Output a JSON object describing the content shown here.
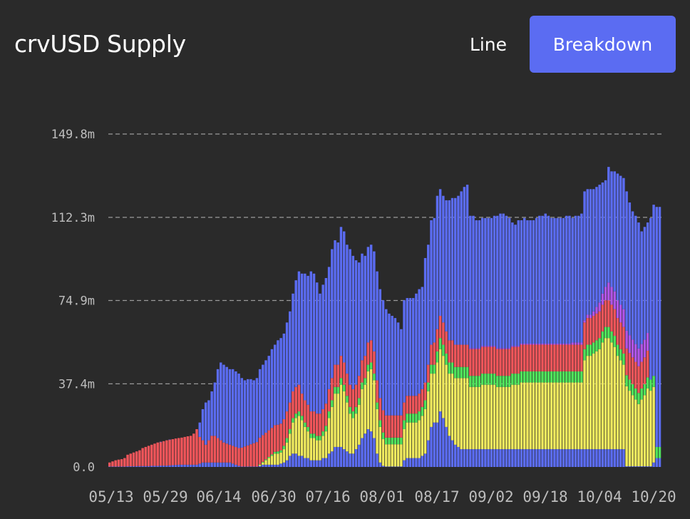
{
  "header": {
    "title": "crvUSD Supply",
    "view_options": [
      "Line",
      "Breakdown"
    ],
    "selected_view": "Breakdown"
  },
  "colors": {
    "background": "#2a2a2a",
    "accent": "#5b6cf2",
    "series": [
      "#5b6cf2",
      "#f0ea5e",
      "#4fe35b",
      "#f0555a",
      "#b055e8"
    ]
  },
  "chart_data": {
    "type": "bar",
    "stacked": true,
    "title": "crvUSD Supply",
    "xlabel": "",
    "ylabel": "",
    "ylim": [
      0,
      149.8
    ],
    "yticks": [
      0,
      37.4,
      74.9,
      112.3,
      149.8
    ],
    "ytick_labels": [
      "0.0",
      "37.4m",
      "74.9m",
      "112.3m",
      "149.8m"
    ],
    "xtick_labels": [
      "05/13",
      "05/29",
      "06/14",
      "06/30",
      "07/16",
      "08/01",
      "08/17",
      "09/02",
      "09/18",
      "10/04",
      "10/20"
    ],
    "grid": "horizontal dashed",
    "legend": "none",
    "start_date": "2023-05-13",
    "totals": [
      2.0,
      2.5,
      3.0,
      3.3,
      3.5,
      4.0,
      5.5,
      6.0,
      6.5,
      7.0,
      7.5,
      8.5,
      9.0,
      9.5,
      10.0,
      10.5,
      11.0,
      11.3,
      11.6,
      12.0,
      12.3,
      12.5,
      12.8,
      13.0,
      13.2,
      13.5,
      13.8,
      14.0,
      15.0,
      17.0,
      20.0,
      26.0,
      29.0,
      30.0,
      34.0,
      38.0,
      44.0,
      47.0,
      46.0,
      45.0,
      44.0,
      44.0,
      43.0,
      42.0,
      40.0,
      39.0,
      39.5,
      39.5,
      39.0,
      40.0,
      44.0,
      46.0,
      48.0,
      50.0,
      53.0,
      55.0,
      57.0,
      58.0,
      60.0,
      65.0,
      70.0,
      78.0,
      84.0,
      88.0,
      87.0,
      87.0,
      86.0,
      88.0,
      87.0,
      83.0,
      78.0,
      82.0,
      85.0,
      90.0,
      98.0,
      102.0,
      101.0,
      108.0,
      106.0,
      100.0,
      98.0,
      95.0,
      93.0,
      92.0,
      96.0,
      95.0,
      99.0,
      100.0,
      97.0,
      88.0,
      80.0,
      75.0,
      71.0,
      69.0,
      68.0,
      67.0,
      65.0,
      62.0,
      75.0,
      76.0,
      76.0,
      76.0,
      78.0,
      80.0,
      81.0,
      94.0,
      100.0,
      111.0,
      112.0,
      122.0,
      125.0,
      122.0,
      120.0,
      120.0,
      121.0,
      121.0,
      122.0,
      124.0,
      126.0,
      127.0,
      113.0,
      113.0,
      111.0,
      111.0,
      112.0,
      112.0,
      112.0,
      112.0,
      113.0,
      113.0,
      114.0,
      114.0,
      113.0,
      112.0,
      110.0,
      109.0,
      111.0,
      111.0,
      112.0,
      111.0,
      111.0,
      111.0,
      112.0,
      113.0,
      113.0,
      114.0,
      113.0,
      112.0,
      112.0,
      112.0,
      112.0,
      112.0,
      113.0,
      113.0,
      112.0,
      113.0,
      113.0,
      114.0,
      124.0,
      125.0,
      125.0,
      125.0,
      126.0,
      127.0,
      128.0,
      129.0,
      135.0,
      133.0,
      133.0,
      132.0,
      131.0,
      130.0,
      124.0,
      119.0,
      115.0,
      113.0,
      110.0,
      106.0,
      108.0,
      110.0,
      112.0,
      118.0,
      117.0,
      117.0
    ],
    "series": [
      {
        "values": [
          1.0,
          1.0,
          1.0,
          1.0,
          1.0,
          1.0,
          1.0,
          1.0,
          1.0,
          1.0,
          1.0,
          1.0,
          1.0,
          1.0,
          1.0,
          1.0,
          1.0,
          1.0,
          1.0,
          1.0,
          1.0,
          1.0,
          1.0,
          1.0,
          1.0,
          1.0,
          1.0,
          1.0,
          1.0,
          1.0,
          1.0,
          1.0,
          1.0,
          1.0,
          1.0,
          1.0,
          1.0,
          1.0,
          1.0,
          1.0,
          1.0,
          1.0,
          1.0,
          1.0,
          1.0,
          1.0,
          1.0,
          1.0,
          1.0,
          1.0,
          1.0,
          1.0,
          1.0,
          1.0,
          1.0,
          1.0,
          1.0,
          1.0,
          1.0,
          1.0,
          1.0,
          1.0,
          1.0,
          1.0,
          1.0,
          1.0,
          1.0,
          1.0,
          1.0,
          1.0,
          1.0,
          1.0,
          1.0,
          1.0,
          1.0,
          1.0,
          1.0,
          1.0,
          1.0,
          1.0,
          1.0,
          1.0,
          1.0,
          1.0,
          1.0,
          1.0,
          1.0,
          1.0,
          1.0,
          1.0,
          1.0,
          1.0,
          1.0,
          1.0,
          1.0,
          1.0,
          1.0,
          1.0,
          1.0,
          1.0,
          1.0,
          1.0,
          1.0,
          1.0,
          1.0,
          1.0,
          1.0,
          1.0,
          1.0,
          1.0,
          1.0,
          1.0,
          1.0,
          1.0,
          1.0,
          1.0,
          1.0,
          1.0,
          1.0,
          1.0,
          1.0,
          1.0,
          1.0,
          1.0,
          1.0,
          1.0,
          1.0,
          1.0,
          1.0,
          1.0,
          1.0,
          1.0,
          1.0,
          1.0,
          1.0,
          1.0,
          1.0,
          1.0,
          1.0,
          1.0,
          1.0,
          1.0,
          1.0,
          1.0,
          1.0,
          1.0,
          1.0,
          1.0,
          1.0,
          1.0,
          1.0,
          1.0,
          1.0,
          1.0,
          1.0,
          1.0,
          1.0,
          1.0,
          1.0,
          1.0,
          1.0,
          1.0,
          1.0,
          1.0,
          1.0,
          1.0,
          1.0,
          1.0,
          1.0,
          1.0,
          1.0,
          1.0,
          1.0,
          1.0,
          1.0,
          1.0,
          1.0,
          1.0,
          1.0,
          1.0,
          1.0,
          1.0,
          1.0,
          1.0,
          1.0,
          1.0
        ]
      }
    ],
    "note_stack_fractions": "segments below are approximate stacked layer values (m) per bar: blue base, yellow, green, red, purple",
    "layers": {
      "blue_base": [
        0.2,
        0.2,
        0.2,
        0.2,
        0.2,
        0.2,
        0.3,
        0.3,
        0.3,
        0.4,
        0.4,
        0.4,
        0.4,
        0.4,
        0.5,
        0.5,
        0.5,
        0.6,
        0.6,
        0.6,
        0.7,
        0.8,
        0.9,
        1.0,
        1.0,
        1.0,
        1.0,
        1.0,
        1.0,
        1.0,
        1.5,
        2.0,
        2.0,
        2.0,
        2.0,
        2.0,
        2.0,
        2.0,
        2.0,
        2.0,
        2.0,
        1.5,
        1.0,
        0.5,
        0.2,
        0.2,
        0.2,
        0.2,
        0.2,
        0.2,
        0.5,
        1.0,
        1.0,
        1.0,
        1.0,
        1.0,
        1.0,
        1.5,
        2.0,
        3.0,
        5.0,
        6.0,
        6.0,
        5.0,
        5.0,
        4.0,
        4.0,
        3.0,
        3.0,
        3.0,
        3.0,
        4.0,
        4.0,
        6.0,
        7.0,
        9.0,
        9.0,
        9.0,
        8.0,
        7.0,
        6.0,
        6.0,
        8.0,
        10.0,
        13.0,
        15.0,
        17.0,
        16.0,
        13.0,
        6.0,
        2.0,
        0.5,
        0.2,
        0.2,
        0.2,
        0.2,
        0.2,
        0.2,
        3.0,
        4.0,
        4.0,
        4.0,
        4.0,
        4.0,
        5.0,
        6.0,
        12.0,
        18.0,
        20.0,
        20.0,
        25.0,
        22.0,
        18.0,
        14.0,
        12.0,
        10.0,
        9.0,
        8.0,
        8.0,
        8.0,
        8.0,
        8.0,
        8.0,
        8.0,
        8.0,
        8.0,
        8.0,
        8.0,
        8.0,
        8.0,
        8.0,
        8.0,
        8.0,
        8.0,
        8.0,
        8.0,
        8.0,
        8.0,
        8.0,
        8.0,
        8.0,
        8.0,
        8.0,
        8.0,
        8.0,
        8.0,
        8.0,
        8.0,
        8.0,
        8.0,
        8.0,
        8.0,
        8.0,
        8.0,
        8.0,
        8.0,
        8.0,
        8.0,
        8.0,
        8.0,
        8.0,
        8.0,
        8.0,
        8.0,
        8.0,
        8.0,
        8.0,
        8.0,
        8.0,
        8.0,
        8.0,
        8.0,
        0.3,
        0.3,
        0.3,
        0.3,
        0.3,
        0.3,
        0.3,
        0.3,
        0.3,
        2.0,
        4.0,
        4.0,
        4.0,
        4.0,
        4.0,
        4.0
      ],
      "yellow": [
        0.0,
        0.0,
        0.0,
        0.0,
        0.0,
        0.0,
        0.0,
        0.0,
        0.0,
        0.0,
        0.0,
        0.0,
        0.0,
        0.0,
        0.0,
        0.0,
        0.0,
        0.0,
        0.0,
        0.0,
        0.0,
        0.0,
        0.0,
        0.0,
        0.0,
        0.0,
        0.0,
        0.0,
        0.0,
        0.0,
        0.0,
        0.0,
        0.0,
        0.0,
        0.0,
        0.0,
        0.0,
        0.0,
        0.0,
        0.0,
        0.0,
        0.0,
        0.0,
        0.0,
        0.0,
        0.0,
        0.0,
        0.0,
        0.0,
        0.0,
        0.5,
        1.0,
        2.0,
        3.0,
        4.0,
        5.0,
        5.0,
        5.0,
        6.0,
        8.0,
        10.0,
        14.0,
        16.0,
        18.0,
        16.0,
        14.0,
        12.0,
        10.0,
        10.0,
        9.0,
        9.0,
        10.0,
        12.0,
        16.0,
        20.0,
        24.0,
        24.0,
        28.0,
        26.0,
        22.0,
        18.0,
        16.0,
        16.0,
        18.0,
        22.0,
        22.0,
        26.0,
        28.0,
        26.0,
        20.0,
        16.0,
        12.0,
        10.0,
        10.0,
        10.0,
        10.0,
        10.0,
        10.0,
        14.0,
        16.0,
        16.0,
        16.0,
        16.0,
        17.0,
        18.0,
        20.0,
        22.0,
        24.0,
        22.0,
        27.0,
        28.0,
        28.0,
        28.0,
        28.0,
        30.0,
        30.0,
        31.0,
        32.0,
        32.0,
        32.0,
        28.0,
        28.0,
        28.0,
        28.0,
        29.0,
        29.0,
        29.0,
        29.0,
        29.0,
        28.0,
        28.0,
        28.0,
        28.0,
        28.0,
        29.0,
        29.0,
        29.0,
        30.0,
        30.0,
        30.0,
        30.0,
        30.0,
        30.0,
        30.0,
        30.0,
        30.0,
        30.0,
        30.0,
        30.0,
        30.0,
        30.0,
        30.0,
        30.0,
        30.0,
        30.0,
        30.0,
        30.0,
        30.0,
        40.0,
        42.0,
        42.0,
        43.0,
        44.0,
        45.0,
        48.0,
        50.0,
        50.0,
        48.0,
        46.0,
        42.0,
        40.0,
        38.0,
        36.0,
        34.0,
        32.0,
        30.0,
        28.0,
        30.0,
        32.0,
        35.0,
        34.0,
        34.0
      ],
      "green": [
        0.0,
        0.0,
        0.0,
        0.0,
        0.0,
        0.0,
        0.0,
        0.0,
        0.0,
        0.0,
        0.0,
        0.0,
        0.0,
        0.0,
        0.0,
        0.0,
        0.0,
        0.0,
        0.0,
        0.0,
        0.0,
        0.0,
        0.0,
        0.0,
        0.0,
        0.0,
        0.0,
        0.0,
        0.0,
        0.0,
        0.0,
        0.0,
        0.0,
        0.0,
        0.0,
        0.0,
        0.0,
        0.0,
        0.0,
        0.0,
        0.0,
        0.0,
        0.0,
        0.0,
        0.0,
        0.0,
        0.0,
        0.0,
        0.0,
        0.0,
        0.2,
        0.3,
        0.4,
        0.5,
        0.6,
        0.8,
        1.0,
        1.0,
        1.5,
        2.0,
        2.0,
        2.0,
        2.0,
        2.0,
        2.0,
        2.0,
        2.0,
        2.0,
        2.0,
        2.0,
        2.0,
        2.0,
        2.5,
        3.0,
        3.0,
        3.0,
        3.0,
        3.0,
        3.0,
        3.0,
        3.0,
        3.0,
        3.0,
        3.0,
        3.0,
        3.0,
        3.0,
        3.0,
        3.0,
        3.0,
        3.0,
        3.0,
        3.0,
        3.0,
        3.0,
        3.0,
        3.0,
        3.0,
        4.0,
        4.0,
        4.0,
        4.0,
        4.0,
        4.0,
        4.0,
        4.0,
        4.0,
        4.0,
        4.0,
        5.0,
        5.0,
        5.0,
        5.0,
        5.0,
        5.0,
        5.0,
        5.0,
        5.0,
        5.0,
        5.0,
        5.0,
        5.0,
        5.0,
        5.0,
        5.0,
        5.0,
        5.0,
        5.0,
        5.0,
        5.0,
        5.0,
        5.0,
        5.0,
        5.0,
        5.0,
        5.0,
        5.0,
        5.0,
        5.0,
        5.0,
        5.0,
        5.0,
        5.0,
        5.0,
        5.0,
        5.0,
        5.0,
        5.0,
        5.0,
        5.0,
        5.0,
        5.0,
        5.0,
        5.0,
        5.0,
        5.0,
        5.0,
        5.0,
        5.0,
        5.0,
        5.0,
        5.0,
        5.0,
        5.0,
        5.0,
        5.0,
        5.0,
        5.0,
        5.0,
        5.0,
        5.0,
        5.0,
        5.0,
        5.0,
        5.0,
        5.0,
        5.0,
        5.0,
        5.0,
        5.0,
        5.0,
        5.0,
        5.0,
        5.0
      ],
      "red": [
        1.8,
        2.3,
        2.8,
        3.1,
        3.3,
        3.8,
        5.2,
        5.7,
        6.2,
        6.6,
        7.1,
        8.1,
        8.6,
        9.1,
        9.5,
        10.0,
        10.5,
        10.7,
        11.0,
        11.4,
        11.6,
        11.7,
        11.9,
        12.0,
        12.2,
        12.5,
        12.8,
        13.0,
        14.0,
        16.0,
        12.0,
        10.0,
        8.0,
        10.0,
        12.0,
        12.0,
        11.0,
        10.0,
        9.0,
        8.5,
        8.0,
        8.0,
        8.0,
        8.0,
        8.5,
        9.0,
        9.5,
        10.0,
        10.5,
        11.0,
        12.0,
        12.0,
        12.0,
        12.0,
        12.0,
        12.0,
        12.0,
        12.0,
        12.0,
        12.0,
        12.0,
        12.0,
        12.0,
        12.0,
        10.0,
        10.0,
        10.0,
        10.0,
        10.0,
        10.0,
        10.0,
        10.0,
        10.0,
        10.0,
        10.0,
        10.0,
        10.0,
        10.0,
        10.0,
        10.0,
        10.0,
        10.0,
        10.0,
        10.0,
        10.0,
        10.0,
        10.0,
        10.0,
        10.0,
        10.0,
        10.0,
        10.0,
        10.0,
        10.0,
        10.0,
        10.0,
        10.0,
        10.0,
        8.0,
        8.0,
        8.0,
        8.0,
        8.0,
        8.0,
        8.0,
        8.0,
        8.0,
        9.0,
        10.0,
        10.0,
        10.0,
        10.0,
        10.0,
        10.0,
        10.0,
        10.0,
        10.0,
        10.0,
        10.0,
        10.0,
        12.0,
        12.0,
        12.0,
        12.0,
        12.0,
        12.0,
        12.0,
        12.0,
        12.0,
        12.0,
        12.0,
        12.0,
        12.0,
        12.0,
        12.0,
        12.0,
        12.0,
        12.0,
        12.0,
        12.0,
        12.0,
        12.0,
        12.0,
        12.0,
        12.0,
        12.0,
        12.0,
        12.0,
        12.0,
        12.0,
        12.0,
        12.0,
        12.0,
        12.0,
        12.0,
        12.0,
        12.0,
        12.0,
        12.0,
        12.0,
        12.0,
        12.0,
        12.0,
        12.0,
        12.0,
        12.0,
        12.0,
        12.0,
        12.0,
        12.0,
        12.0,
        12.0,
        12.0,
        12.0,
        12.0,
        12.0,
        12.0,
        12.0,
        12.0,
        12.0
      ],
      "purple": [
        0.0,
        0.0,
        0.0,
        0.0,
        0.0,
        0.0,
        0.0,
        0.0,
        0.0,
        0.0,
        0.0,
        0.0,
        0.0,
        0.0,
        0.0,
        0.0,
        0.0,
        0.0,
        0.0,
        0.0,
        0.0,
        0.0,
        0.0,
        0.0,
        0.0,
        0.0,
        0.0,
        0.0,
        0.0,
        0.0,
        0.0,
        0.0,
        0.0,
        0.0,
        0.0,
        0.0,
        0.0,
        0.0,
        0.0,
        0.0,
        0.0,
        0.0,
        0.0,
        0.0,
        0.0,
        0.0,
        0.0,
        0.0,
        0.0,
        0.0,
        0.0,
        0.0,
        0.0,
        0.0,
        0.0,
        0.0,
        0.0,
        0.0,
        0.0,
        0.0,
        0.0,
        0.0,
        0.0,
        0.0,
        0.0,
        0.0,
        0.0,
        0.0,
        0.0,
        0.0,
        0.0,
        0.0,
        0.0,
        0.0,
        0.0,
        0.0,
        0.0,
        0.0,
        0.0,
        0.0,
        0.0,
        0.0,
        0.0,
        0.0,
        0.0,
        0.0,
        0.0,
        0.0,
        0.0,
        0.0,
        0.0,
        0.0,
        0.0,
        0.0,
        0.0,
        0.0,
        0.0,
        0.0,
        0.0,
        0.0,
        0.0,
        0.0,
        0.0,
        0.0,
        0.0,
        0.0,
        0.0,
        0.0,
        0.0,
        0.0,
        0.0,
        0.0,
        0.0,
        0.0,
        0.0,
        0.0,
        0.0,
        0.0,
        0.0,
        0.0,
        0.5,
        0.5,
        0.5,
        0.5,
        0.5,
        0.5,
        0.5,
        0.5,
        0.5,
        0.5,
        0.5,
        0.5,
        0.5,
        0.5,
        0.5,
        0.5,
        0.5,
        0.5,
        0.5,
        0.5,
        0.5,
        0.5,
        0.5,
        0.5,
        0.5,
        0.5,
        0.5,
        0.5,
        0.5,
        0.5,
        0.5,
        0.5,
        0.5,
        0.5,
        1.0,
        1.0,
        1.0,
        1.0,
        1.0,
        1.5,
        1.5,
        2.0,
        3.0,
        4.0,
        5.0,
        6.0,
        8.0,
        8.0,
        8.0,
        8.0,
        8.0,
        8.0,
        8.0,
        8.0,
        8.0,
        8.0,
        8.0,
        8.0,
        8.0,
        8.0
      ]
    }
  }
}
